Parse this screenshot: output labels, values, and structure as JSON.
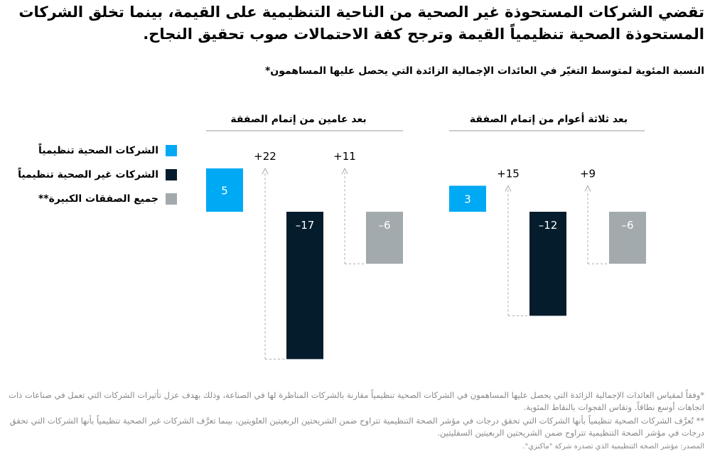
{
  "title": "تقضي الشركات المستحوذة غير الصحية من الناحية التنظيمية على القيمة، بينما تخلق الشركات المستحوذة الصحية تنظيمياً القيمة وترجح كفة الاحتمالات صوب تحقيق النجاح.",
  "chart_data": {
    "type": "bar",
    "title": "النسبة المئوية لمتوسط التغيّر في العائدات الإجمالية الزائدة التي يحصل عليها المساهمون*",
    "legend": [
      {
        "name": "الشركات الصحية تنظيمياً",
        "color": "#00a9f4"
      },
      {
        "name": "الشركات غير الصحية تنظيمياً",
        "color": "#051c2c"
      },
      {
        "name": "جميع الصفقات الكبيرة**",
        "color": "#a2aaad"
      }
    ],
    "panels": [
      {
        "title": "بعد عامين من إتمام الصفقة",
        "values": [
          5,
          -17,
          -6
        ],
        "labels": [
          "5",
          "–17",
          "–6"
        ],
        "gaps": [
          {
            "value": 22,
            "label": "+22"
          },
          {
            "value": 11,
            "label": "+11"
          }
        ]
      },
      {
        "title": "بعد ثلاثة أعوام من إتمام الصفقة",
        "values": [
          3,
          -12,
          -6
        ],
        "labels": [
          "3",
          "–12",
          "–6"
        ],
        "gaps": [
          {
            "value": 15,
            "label": "+15"
          },
          {
            "value": 9,
            "label": "+9"
          }
        ]
      }
    ]
  },
  "notes": [
    "*وفقاً لمقياس العائدات الإجمالية الزائدة التي يحصل عليها المساهمون في الشركات الصحية تنظيمياً مقارنة بالشركات المناظرة لها في الصناعة، وذلك بهدف عزل تأثيرات الشركات التي تعمل في صناعات ذات اتجاهات أوسع نطاقاً. وتقاس الفجوات بالنقاط المئوية.",
    "** تُعرَّف الشركات الصحية تنظيمياً بأنها الشركات التي تحقق درجات في مؤشر الصحة التنظيمية تتراوح ضمن الشريحتين الربعيتين العلويتين، بينما تعرَّف الشركات غير الصحية تنظيمياً بأنها الشركات التي تحقق درجات في مؤشر الصحة التنظيمية تتراوح ضمن الشريحتين الربعيتين السفليتين."
  ],
  "source": "المصدر: مؤشر الصحة التنظيمية الذي تصدره شركة \"ماكنزي\"."
}
